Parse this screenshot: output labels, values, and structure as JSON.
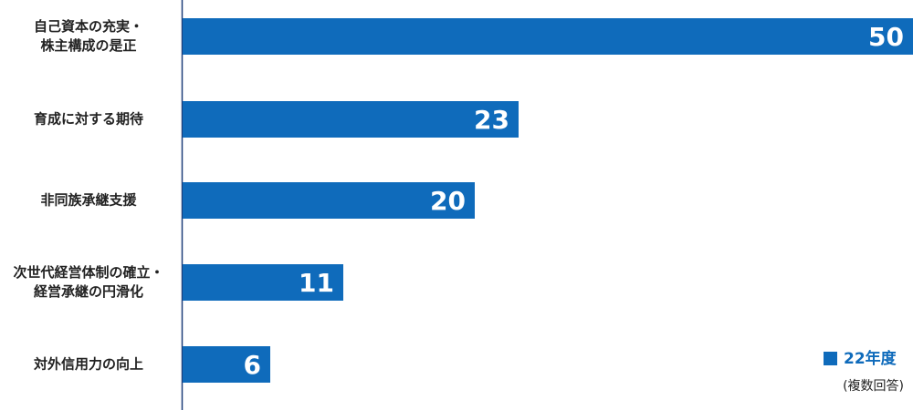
{
  "chart_data": {
    "type": "bar",
    "orientation": "horizontal",
    "categories": [
      [
        "自己資本の充実・",
        "株主構成の是正"
      ],
      [
        "育成に対する期待"
      ],
      [
        "非同族承継支援"
      ],
      [
        "次世代経営体制の確立・",
        "経営承継の円滑化"
      ],
      [
        "対外信用力の向上"
      ]
    ],
    "series": [
      {
        "name": "22年度",
        "color": "#0f6bbb",
        "values": [
          50,
          23,
          20,
          11,
          6
        ]
      }
    ],
    "xlim": [
      0,
      50
    ],
    "annotation": "(複数回答)"
  }
}
